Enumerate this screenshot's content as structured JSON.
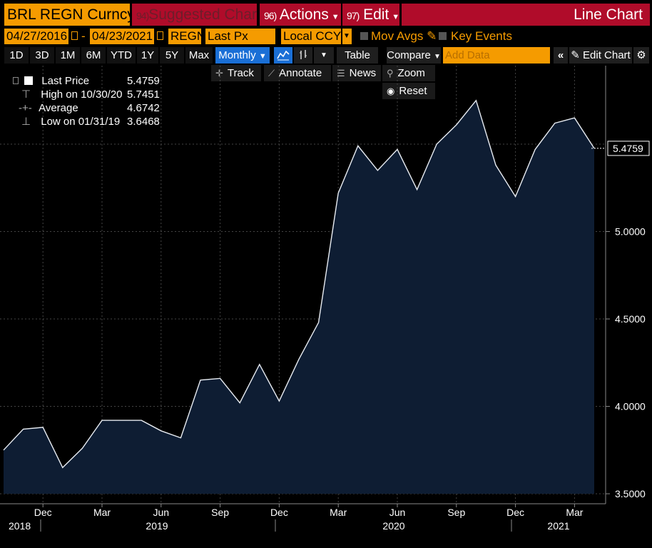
{
  "title_bar": {
    "security": "BRL REGN Curncy",
    "suggested_num": "94)",
    "suggested_label": "Suggested Charts",
    "actions_num": "96)",
    "actions_label": "Actions",
    "edit_num": "97)",
    "edit_label": "Edit",
    "chart_type": "Line Chart"
  },
  "settings_bar": {
    "start_date": "04/27/2016",
    "date_sep": "-",
    "end_date": "04/23/2021",
    "security_field": "REGN",
    "field": "Last Px",
    "currency": "Local CCY",
    "mov_avgs": "Mov Avgs",
    "key_events": "Key Events"
  },
  "toolbar": {
    "periods": [
      "1D",
      "3D",
      "1M",
      "6M",
      "YTD",
      "1Y",
      "5Y",
      "Max"
    ],
    "frequency": "Monthly",
    "table": "Table",
    "compare": "Compare",
    "add_data_placeholder": "Add Data",
    "edit_chart": "Edit Chart"
  },
  "chart_tools": {
    "track": "Track",
    "annotate": "Annotate",
    "news": "News",
    "zoom": "Zoom",
    "reset": "Reset"
  },
  "legend": {
    "last_label": "Last Price",
    "last_value": "5.4759",
    "high_label": "High on 10/30/20",
    "high_value": "5.7451",
    "avg_label": "Average",
    "avg_value": "4.6742",
    "low_label": "Low on 01/31/19",
    "low_value": "3.6468"
  },
  "colors": {
    "brand_orange": "#f59b00",
    "header_red": "#b00c2a",
    "selected_blue": "#1a6fd6",
    "area_fill": "#0e1d33",
    "line": "#e8ecf2"
  },
  "chart_data": {
    "type": "area",
    "x": [
      "2018-10",
      "2018-11",
      "2018-12",
      "2019-01",
      "2019-02",
      "2019-03",
      "2019-04",
      "2019-05",
      "2019-06",
      "2019-07",
      "2019-08",
      "2019-09",
      "2019-10",
      "2019-11",
      "2019-12",
      "2020-01",
      "2020-02",
      "2020-03",
      "2020-04",
      "2020-05",
      "2020-06",
      "2020-07",
      "2020-08",
      "2020-09",
      "2020-10",
      "2020-11",
      "2020-12",
      "2021-01",
      "2021-02",
      "2021-03",
      "2021-04"
    ],
    "series": [
      {
        "values": [
          3.75,
          3.87,
          3.88,
          3.65,
          3.76,
          3.92,
          3.92,
          3.92,
          3.86,
          3.82,
          4.15,
          4.16,
          4.02,
          4.24,
          4.03,
          4.27,
          4.48,
          5.22,
          5.49,
          5.35,
          5.47,
          5.24,
          5.5,
          5.61,
          5.75,
          5.38,
          5.2,
          5.47,
          5.62,
          5.65,
          5.4759
        ]
      }
    ],
    "ylim": [
      3.5,
      5.95
    ],
    "yticks": [
      "3.5000",
      "4.0000",
      "4.5000",
      "5.0000"
    ],
    "last_value_label": "5.4759",
    "x_month_ticks": [
      "Dec",
      "Mar",
      "Jun",
      "Sep",
      "Dec",
      "Mar",
      "Jun",
      "Sep",
      "Dec",
      "Mar"
    ],
    "x_year_ticks": [
      "2018",
      "2019",
      "2020",
      "2021"
    ],
    "grid": true
  }
}
